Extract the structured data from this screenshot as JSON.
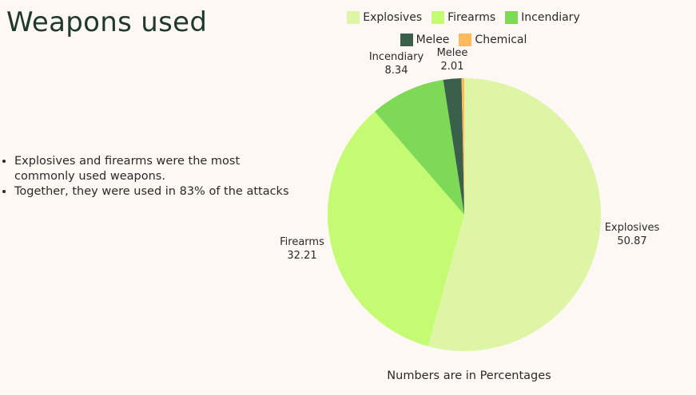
{
  "title": "Weapons used",
  "bullets": [
    "Explosives and firearms were the most commonly used weapons.",
    "Together, they were used in 83% of the attacks"
  ],
  "footnote": "Numbers are in Percentages",
  "chart_data": {
    "type": "pie",
    "title": "",
    "categories": [
      "Explosives",
      "Firearms",
      "Incendiary",
      "Melee",
      "Chemical"
    ],
    "values": [
      50.87,
      32.21,
      8.34,
      2.01,
      0.3
    ],
    "data_labels": [
      "50.87",
      "32.21",
      "8.34",
      "2.01",
      ""
    ],
    "colors": [
      "#dff5a6",
      "#c5fb72",
      "#7ed957",
      "#3a5f4a",
      "#ffb85c"
    ],
    "start_angle": "12 o'clock",
    "direction": "clockwise",
    "legend": {
      "placement": "top",
      "rows": [
        [
          "Explosives",
          "Firearms",
          "Incendiary"
        ],
        [
          "Melee",
          "Chemical"
        ]
      ]
    }
  }
}
